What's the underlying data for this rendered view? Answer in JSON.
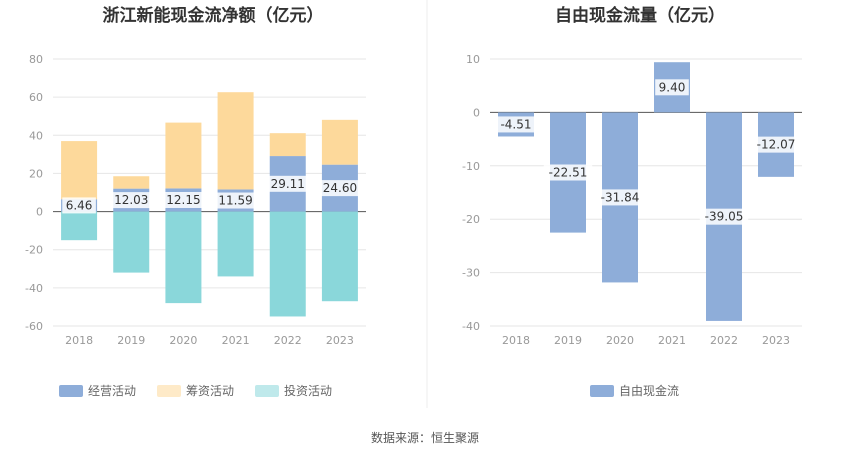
{
  "source": "数据来源：恒生聚源",
  "chart_data": [
    {
      "type": "bar",
      "stacked": true,
      "title": "浙江新能现金流净额（亿元）",
      "categories": [
        "2018",
        "2019",
        "2020",
        "2021",
        "2022",
        "2023"
      ],
      "ylim": [
        -60,
        80
      ],
      "yticks": [
        80,
        60,
        40,
        20,
        0,
        -20,
        -40,
        -60
      ],
      "legend_position": "bottom",
      "series": [
        {
          "name": "经营活动",
          "color": "#8eadd9",
          "values": [
            6.46,
            12.03,
            12.15,
            11.59,
            29.11,
            24.6
          ],
          "labels": [
            "6.46",
            "12.03",
            "12.15",
            "11.59",
            "29.11",
            "24.60"
          ]
        },
        {
          "name": "筹资活动",
          "color": "#fdd99b",
          "values": [
            30.5,
            6.5,
            34.5,
            51.0,
            12.0,
            23.5
          ]
        },
        {
          "name": "投资活动",
          "color": "#8ad7da",
          "values": [
            -15,
            -32,
            -48,
            -34,
            -55,
            -47
          ]
        }
      ]
    },
    {
      "type": "bar",
      "title": "自由现金流量（亿元）",
      "categories": [
        "2018",
        "2019",
        "2020",
        "2021",
        "2022",
        "2023"
      ],
      "ylim": [
        -40,
        10
      ],
      "yticks": [
        10,
        0,
        -10,
        -20,
        -30,
        -40
      ],
      "legend_position": "bottom",
      "series": [
        {
          "name": "自由现金流",
          "color": "#8eadd9",
          "values": [
            -4.51,
            -22.51,
            -31.84,
            9.4,
            -39.05,
            -12.07
          ],
          "labels": [
            "-4.51",
            "-22.51",
            "-31.84",
            "9.40",
            "-39.05",
            "-12.07"
          ]
        }
      ]
    }
  ]
}
